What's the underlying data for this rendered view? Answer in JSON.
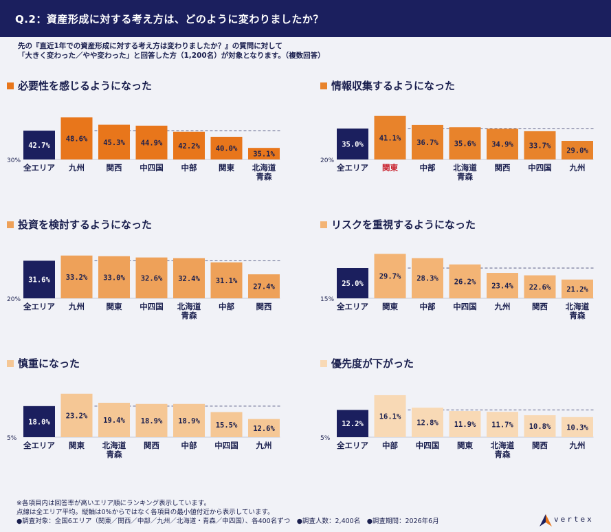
{
  "header": {
    "title": "Q.2：資産形成に対する考え方は、どのように変わりましたか？"
  },
  "intro": [
    "先の『直近1年での資産形成に対する考え方は変わりましたか？』の質問に対して",
    "「大きく変わった／やや変わった」と回答した方（1,200名）が対象となります。（複数回答）"
  ],
  "colors": {
    "navy": "#1b1f5e",
    "red": "#c81e2a"
  },
  "chart_data": [
    {
      "type": "bar",
      "title": "必要性を感じるようになった",
      "color": "#e8761b",
      "axis_label": "30%",
      "ymin": 30,
      "ymax": 50,
      "average": 42.7,
      "categories": [
        "全エリア",
        "九州",
        "関西",
        "中四国",
        "中部",
        "関東",
        "北海道\n青森"
      ],
      "values": [
        42.7,
        48.6,
        45.3,
        44.9,
        42.2,
        40.0,
        35.1
      ],
      "labels": [
        "42.7%",
        "48.6%",
        "45.3%",
        "44.9%",
        "42.2%",
        "40.0%",
        "35.1%"
      ],
      "highlight": ""
    },
    {
      "type": "bar",
      "title": "情報収集するようになった",
      "color": "#e8832b",
      "axis_label": "20%",
      "ymin": 20,
      "ymax": 42,
      "average": 35.0,
      "categories": [
        "全エリア",
        "関東",
        "中部",
        "北海道\n青森",
        "関西",
        "中四国",
        "九州"
      ],
      "values": [
        35.0,
        41.1,
        36.7,
        35.6,
        34.9,
        33.7,
        29.0
      ],
      "labels": [
        "35.0%",
        "41.1%",
        "36.7%",
        "35.6%",
        "34.9%",
        "33.7%",
        "29.0%"
      ],
      "highlight": "関東"
    },
    {
      "type": "bar",
      "title": "投資を検討するようになった",
      "color": "#eea159",
      "axis_label": "20%",
      "ymin": 20,
      "ymax": 34,
      "average": 31.6,
      "categories": [
        "全エリア",
        "九州",
        "関東",
        "中四国",
        "北海道\n青森",
        "中部",
        "関西"
      ],
      "values": [
        31.6,
        33.2,
        33.0,
        32.6,
        32.4,
        31.1,
        27.4
      ],
      "labels": [
        "31.6%",
        "33.2%",
        "33.0%",
        "32.6%",
        "32.4%",
        "31.1%",
        "27.4%"
      ],
      "highlight": ""
    },
    {
      "type": "bar",
      "title": "リスクを重視するようになった",
      "color": "#f3b475",
      "axis_label": "15%",
      "ymin": 15,
      "ymax": 30,
      "average": 25.0,
      "categories": [
        "全エリア",
        "関東",
        "中部",
        "中四国",
        "九州",
        "関西",
        "北海道\n青森"
      ],
      "values": [
        25.0,
        29.7,
        28.3,
        26.2,
        23.4,
        22.6,
        21.2
      ],
      "labels": [
        "25.0%",
        "29.7%",
        "28.3%",
        "26.2%",
        "23.4%",
        "22.6%",
        "21.2%"
      ],
      "highlight": ""
    },
    {
      "type": "bar",
      "title": "慎重になった",
      "color": "#f5c795",
      "axis_label": "5%",
      "ymin": 5,
      "ymax": 24,
      "average": 18.0,
      "categories": [
        "全エリア",
        "関東",
        "北海道\n青森",
        "関西",
        "中部",
        "中四国",
        "九州"
      ],
      "values": [
        18.0,
        23.2,
        19.4,
        18.9,
        18.9,
        15.5,
        12.6
      ],
      "labels": [
        "18.0%",
        "23.2%",
        "19.4%",
        "18.9%",
        "18.9%",
        "15.5%",
        "12.6%"
      ],
      "highlight": ""
    },
    {
      "type": "bar",
      "title": "優先度が下がった",
      "color": "#f8d9b5",
      "axis_label": "5%",
      "ymin": 5,
      "ymax": 17,
      "average": 12.2,
      "categories": [
        "全エリア",
        "中部",
        "中四国",
        "関東",
        "北海道\n青森",
        "関西",
        "九州"
      ],
      "values": [
        12.2,
        16.1,
        12.8,
        11.9,
        11.7,
        10.8,
        10.3
      ],
      "labels": [
        "12.2%",
        "16.1%",
        "12.8%",
        "11.9%",
        "11.7%",
        "10.8%",
        "10.3%"
      ],
      "highlight": ""
    }
  ],
  "footer": [
    "※各項目内は回答率が高いエリア順にランキング表示しています。",
    "点線は全エリア平均。縦軸は0%からではなく各項目の最小値付近から表示しています。",
    "●調査対象：全国6エリア（関東／関西／中部／九州／北海道・青森／中四国）、各400名ずつ　●調査人数：2,400名　●調査期間：2026年6月"
  ],
  "logo": {
    "word": "vertex"
  }
}
